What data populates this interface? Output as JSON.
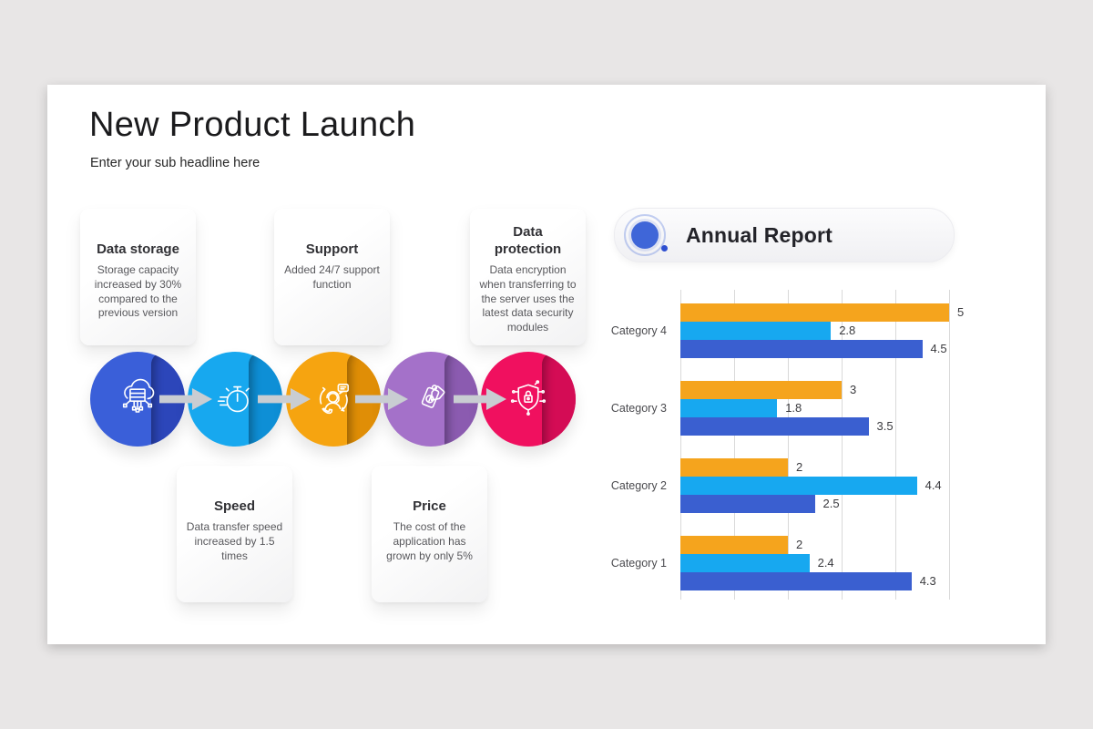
{
  "canvas": {
    "background": "#E8E6E6",
    "slide_background": "#FFFFFF"
  },
  "slide": {
    "title": "New Product Launch",
    "subtitle": "Enter your sub headline here"
  },
  "features": [
    {
      "title": "Data storage",
      "description": "Storage capacity increased by 30% compared to the previous version",
      "icon": "cloud-server-icon",
      "circle_color": "#3A5FD9",
      "fold_color": "#2C46BA"
    },
    {
      "title": "Speed",
      "description": "Data transfer speed increased by 1.5 times",
      "icon": "stopwatch-icon",
      "circle_color": "#17A8EF",
      "fold_color": "#0E8FD6"
    },
    {
      "title": "Support",
      "description": "Added 24/7 support function",
      "icon": "support-agent-icon",
      "circle_color": "#F6A410",
      "fold_color": "#E08E06"
    },
    {
      "title": "Price",
      "description": "The cost of the application has grown by only 5%",
      "icon": "price-tags-icon",
      "circle_color": "#A471C9",
      "fold_color": "#8B5BB0"
    },
    {
      "title": "Data protection",
      "description": "Data encryption when transferring to the server uses the latest data security modules",
      "icon": "shield-lock-icon",
      "circle_color": "#F0105F",
      "fold_color": "#D40C55"
    }
  ],
  "pipeline": {
    "arrow_color": "#C9CDD2",
    "arrow_icon": "flow-arrow-icon"
  },
  "report": {
    "title": "Annual Report",
    "icon": "annual-report-dot-icon",
    "accent_color": "#3F66D8",
    "dot_color": "#2E4FD0"
  },
  "chart_data": {
    "type": "bar",
    "orientation": "horizontal",
    "title": "Annual Report",
    "categories": [
      "Category 4",
      "Category 3",
      "Category 2",
      "Category 1"
    ],
    "series": [
      {
        "name": "orange",
        "color": "#F5A41D",
        "values": [
          5,
          3,
          2,
          2
        ]
      },
      {
        "name": "light-blue",
        "color": "#17A8F0",
        "values": [
          2.8,
          1.8,
          4.4,
          2.4
        ]
      },
      {
        "name": "royal-blue",
        "color": "#3A5FD0",
        "values": [
          4.5,
          3.5,
          2.5,
          4.3
        ]
      }
    ],
    "xlim": [
      0,
      5
    ],
    "gridline_step": 1,
    "grid": "vertical",
    "grid_color": "#D9D9D9",
    "legend": "none",
    "value_labels": true,
    "xlabel": "",
    "ylabel": ""
  }
}
